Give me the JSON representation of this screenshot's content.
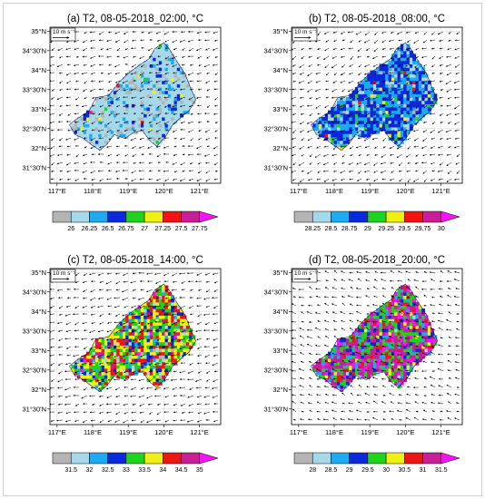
{
  "chart_data": [
    {
      "type": "map-contour",
      "title": "(a) T2,  08-05-2018_02:00, °C",
      "lon_ticks": [
        "117°E",
        "118°E",
        "119°E",
        "120°E",
        "121°E"
      ],
      "lat_ticks": [
        "35°N",
        "34°30'N",
        "34°N",
        "33°30'N",
        "33°N",
        "32°30'N",
        "32°N",
        "31°30'N"
      ],
      "xlim": [
        116.8,
        121.6
      ],
      "ylim": [
        31.1,
        35.1
      ],
      "reference_vector": "10 m s⁻¹",
      "colorbar_labels": [
        "26",
        "26.25",
        "26.5",
        "26.75",
        "27",
        "27.25",
        "27.5",
        "27.75"
      ],
      "colorbar_colors": [
        "#b4b4b4",
        "#a5d8e8",
        "#1eaaf0",
        "#0a28dc",
        "#1ed21e",
        "#f0f014",
        "#f01414",
        "#c81e96",
        "#f514f5"
      ],
      "region_mix": [
        0.1,
        0.75,
        0.08,
        0.04,
        0.01,
        0.01,
        0.005,
        0.005,
        0.0
      ],
      "wind": {
        "u": -3.0,
        "v": -1.0
      }
    },
    {
      "type": "map-contour",
      "title": "(b) T2,  08-05-2018_08:00, °C",
      "lon_ticks": [
        "117°E",
        "118°E",
        "119°E",
        "120°E",
        "121°E"
      ],
      "lat_ticks": [
        "35°N",
        "34°30'N",
        "34°N",
        "33°30'N",
        "33°N",
        "32°30'N",
        "32°N",
        "31°30'N"
      ],
      "xlim": [
        116.8,
        121.6
      ],
      "ylim": [
        31.1,
        35.1
      ],
      "reference_vector": "10 m s⁻¹",
      "colorbar_labels": [
        "28.25",
        "28.5",
        "28.75",
        "29",
        "29.25",
        "29.5",
        "29.75",
        "30"
      ],
      "colorbar_colors": [
        "#b4b4b4",
        "#a5d8e8",
        "#1eaaf0",
        "#0a28dc",
        "#1ed21e",
        "#f0f014",
        "#f01414",
        "#c81e96",
        "#f514f5"
      ],
      "region_mix": [
        0.02,
        0.14,
        0.34,
        0.44,
        0.03,
        0.02,
        0.01,
        0.0,
        0.0
      ],
      "wind": {
        "u": -3.0,
        "v": -1.5
      }
    },
    {
      "type": "map-contour",
      "title": "(c) T2,  08-05-2018_14:00, °C",
      "lon_ticks": [
        "117°E",
        "118°E",
        "119°E",
        "120°E",
        "121°E"
      ],
      "lat_ticks": [
        "35°N",
        "34°30'N",
        "34°N",
        "33°30'N",
        "33°N",
        "32°30'N",
        "32°N",
        "31°30'N"
      ],
      "xlim": [
        116.8,
        121.6
      ],
      "ylim": [
        31.1,
        35.1
      ],
      "reference_vector": "10 m s⁻¹",
      "colorbar_labels": [
        "31.5",
        "32",
        "32.5",
        "33",
        "33.5",
        "34",
        "34.5",
        "35"
      ],
      "colorbar_colors": [
        "#b4b4b4",
        "#a5d8e8",
        "#1eaaf0",
        "#0a28dc",
        "#1ed21e",
        "#f0f014",
        "#f01414",
        "#c81e96",
        "#f514f5"
      ],
      "region_mix": [
        0.02,
        0.05,
        0.08,
        0.12,
        0.24,
        0.27,
        0.17,
        0.04,
        0.01
      ],
      "wind": {
        "u": -3.5,
        "v": -1.0
      }
    },
    {
      "type": "map-contour",
      "title": "(d) T2,  08-05-2018_20:00, °C",
      "lon_ticks": [
        "117°E",
        "118°E",
        "119°E",
        "120°E",
        "121°E"
      ],
      "lat_ticks": [
        "35°N",
        "34°30'N",
        "34°N",
        "33°30'N",
        "33°N",
        "32°30'N",
        "32°N",
        "31°30'N"
      ],
      "xlim": [
        116.8,
        121.6
      ],
      "ylim": [
        31.1,
        35.1
      ],
      "reference_vector": "10 m s⁻¹",
      "colorbar_labels": [
        "28",
        "28.5",
        "29",
        "29.5",
        "30",
        "30.5",
        "31",
        "31.5"
      ],
      "colorbar_colors": [
        "#b4b4b4",
        "#a5d8e8",
        "#1eaaf0",
        "#0a28dc",
        "#1ed21e",
        "#f0f014",
        "#f01414",
        "#c81e96",
        "#f514f5"
      ],
      "region_mix": [
        0.0,
        0.02,
        0.1,
        0.08,
        0.22,
        0.05,
        0.05,
        0.33,
        0.15
      ],
      "wind": {
        "u": -3.0,
        "v": 1.0
      }
    }
  ]
}
